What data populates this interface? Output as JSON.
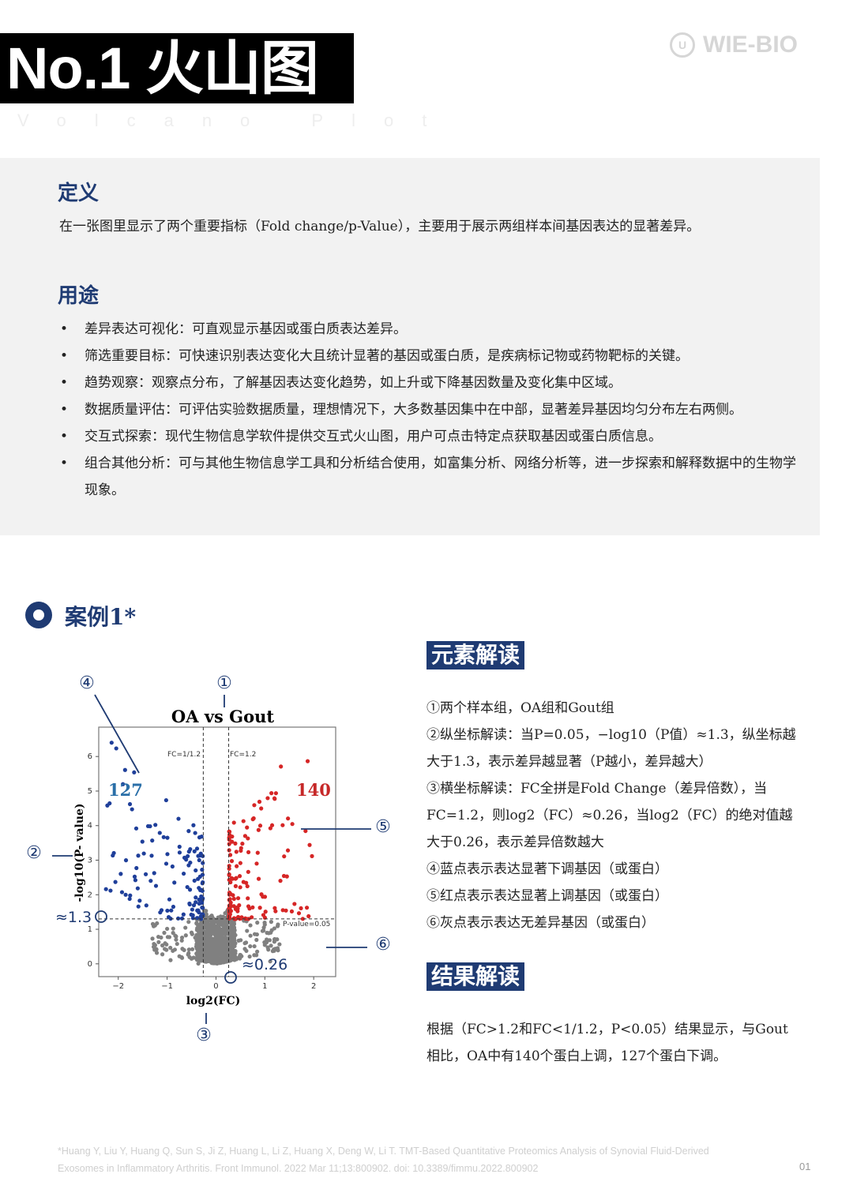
{
  "header": {
    "title": "No.1 火山图",
    "subtitle": "Volcano Plot",
    "logo_text": "WIE-BIO"
  },
  "definition": {
    "heading": "定义",
    "text": "在一张图里显示了两个重要指标（Fold change/p-Value），主要用于展示两组样本间基因表达的显著差异。"
  },
  "uses": {
    "heading": "用途",
    "items": [
      "差异表达可视化：可直观显示基因或蛋白质表达差异。",
      "筛选重要目标：可快速识别表达变化大且统计显著的基因或蛋白质，是疾病标记物或药物靶标的关键。",
      "趋势观察：观察点分布，了解基因表达变化趋势，如上升或下降基因数量及变化集中区域。",
      "数据质量评估：可评估实验数据质量，理想情况下，大多数基因集中在中部，显著差异基因均匀分布左右两侧。",
      "交互式探索：现代生物信息学软件提供交互式火山图，用户可点击特定点获取基因或蛋白质信息。",
      "组合其他分析：可与其他生物信息学工具和分析结合使用，如富集分析、网络分析等，进一步探索和解释数据中的生物学现象。"
    ]
  },
  "case": {
    "title": "案例1*"
  },
  "chart_data": {
    "type": "scatter",
    "title": "OA vs Gout",
    "xlabel": "log2(FC)",
    "ylabel": "-log10(P- value)",
    "xlim": [
      -2.4,
      2.45
    ],
    "ylim": [
      -0.37,
      6.85
    ],
    "xticks": [
      "-2",
      "-1",
      "0",
      "1",
      "2"
    ],
    "yticks": [
      "0",
      "1",
      "2",
      "3",
      "4",
      "5",
      "6"
    ],
    "grid": false,
    "thresholds": {
      "fc_low": -0.26,
      "fc_high": 0.26,
      "p_line": 1.3
    },
    "threshold_labels": {
      "fc_low": "FC=1/1.2",
      "fc_high": "FC=1.2",
      "p_line": "P-value=0.05"
    },
    "series": [
      {
        "name": "down",
        "count_label": "127",
        "color": "#1f3f9a"
      },
      {
        "name": "up",
        "count_label": "140",
        "color": "#d62626"
      },
      {
        "name": "ns",
        "color": "#808080"
      }
    ],
    "annotations": {
      "markers": [
        "①",
        "②",
        "③",
        "④",
        "⑤",
        "⑥"
      ],
      "y_callout": "≈1.3",
      "x_callout": "≈0.26"
    }
  },
  "elements": {
    "heading": "元素解读",
    "lines": [
      "①两个样本组，OA组和Gout组",
      "②纵坐标解读：当P=0.05，−log10（P值）≈1.3，纵坐标越大于1.3，表示差异越显著（P越小，差异越大）",
      "③横坐标解读：FC全拼是Fold Change（差异倍数），当FC=1.2，则log2（FC）≈0.26，当log2（FC）的绝对值越大于0.26，表示差异倍数越大",
      "④蓝点表示表达显著下调基因（或蛋白）",
      "⑤红点表示表达显著上调基因（或蛋白）",
      "⑥灰点表示表达无差异基因（或蛋白）"
    ]
  },
  "results": {
    "heading": "结果解读",
    "text": "根据（FC>1.2和FC<1/1.2，P<0.05）结果显示，与Gout相比，OA中有140个蛋白上调，127个蛋白下调。"
  },
  "footer": {
    "citation": "*Huang Y, Liu Y, Huang Q, Sun S, Ji Z, Huang L, Li Z, Huang X, Deng W, Li T. TMT-Based Quantitative Proteomics Analysis of Synovial Fluid-Derived Exosomes in Inflammatory Arthritis. Front Immunol. 2022 Mar 11;13:800902. doi: 10.3389/fimmu.2022.800902",
    "page": "01"
  },
  "colors": {
    "accent": "#1f3b73",
    "panel": "#f2f2f2",
    "up": "#d62626",
    "down": "#1f3f9a",
    "ns": "#808080"
  }
}
